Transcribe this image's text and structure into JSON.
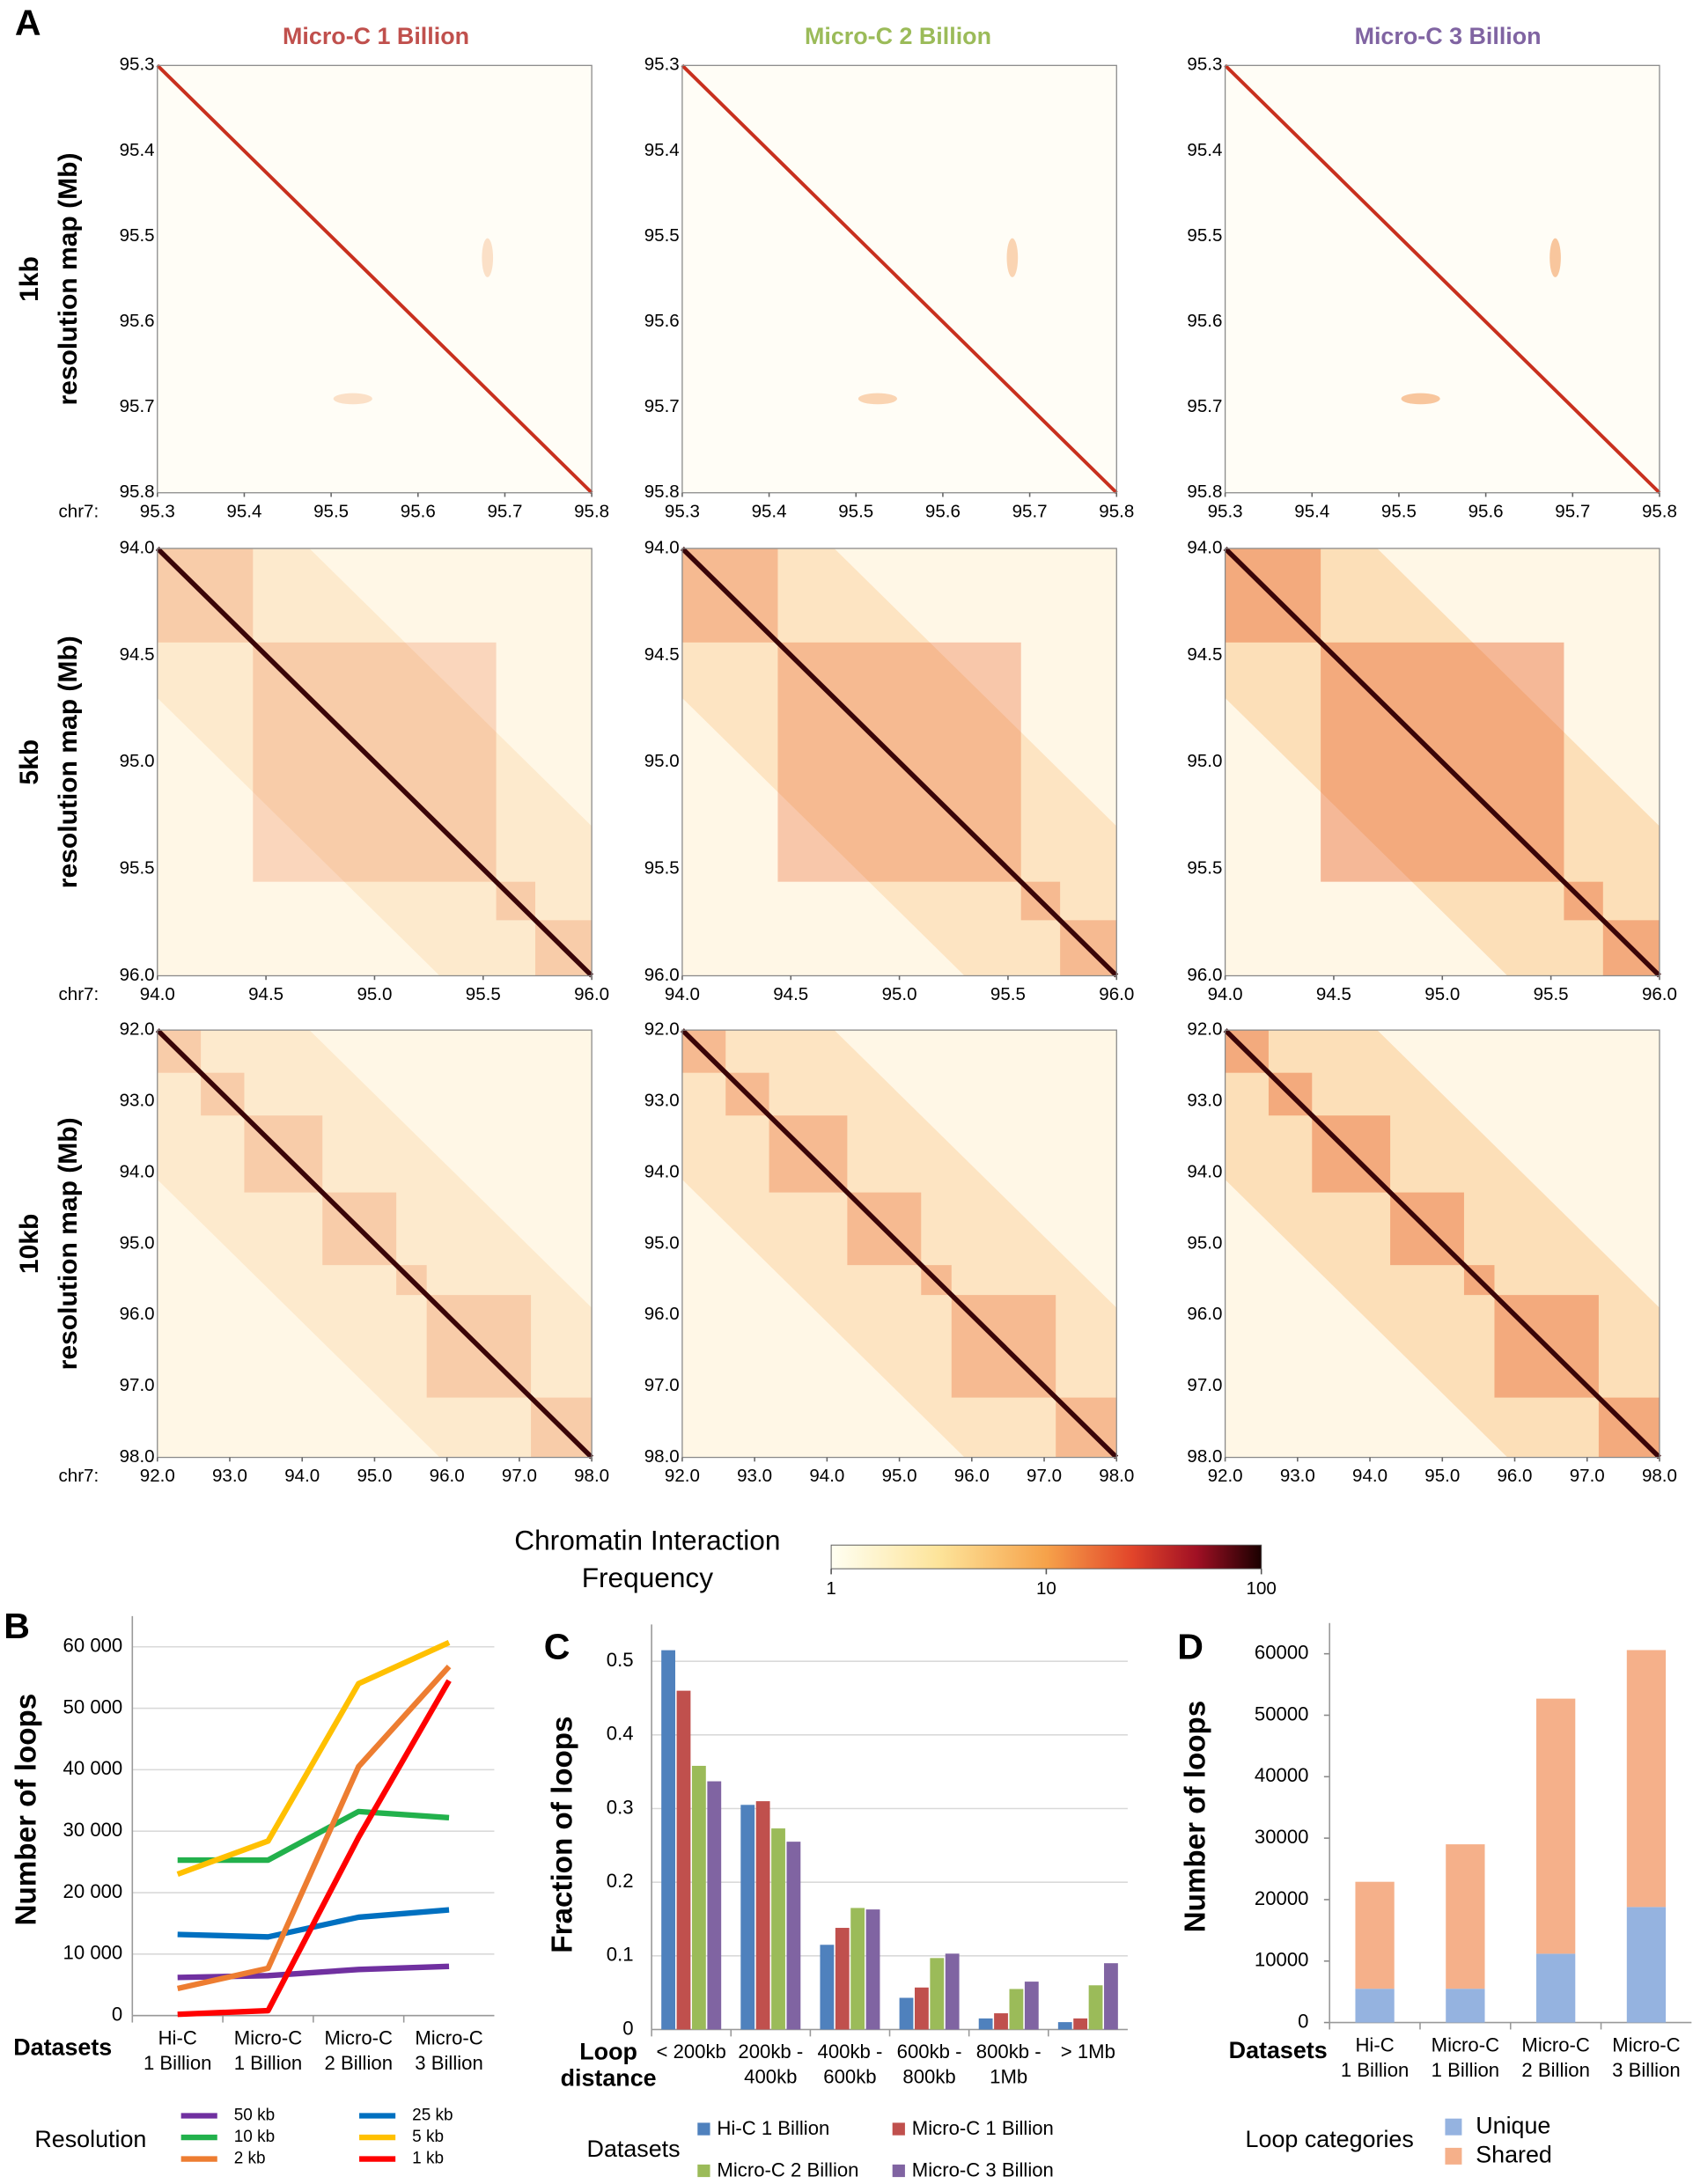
{
  "panel_labels": [
    "A",
    "B",
    "C",
    "D"
  ],
  "heatmaps": {
    "columns": [
      {
        "title": "Micro-C 1 Billion",
        "color": "#c0504d"
      },
      {
        "title": "Micro-C 2 Billion",
        "color": "#9bbb59"
      },
      {
        "title": "Micro-C 3 Billion",
        "color": "#8064a2"
      }
    ],
    "chr_label": "chr7:",
    "rows": [
      {
        "label": [
          "1kb",
          "resolution map (Mb)"
        ],
        "lim": [
          95.3,
          95.8
        ],
        "ticks": [
          95.3,
          95.4,
          95.5,
          95.6,
          95.7,
          95.8
        ]
      },
      {
        "label": [
          "5kb",
          "resolution map (Mb)"
        ],
        "lim": [
          94,
          96
        ],
        "ticks": [
          {
            "value": 94,
            "label": "94.0"
          },
          94.5,
          {
            "value": 95,
            "label": "95.0"
          },
          95.5,
          {
            "value": 96,
            "label": "96.0"
          }
        ]
      },
      {
        "label": [
          "10kb",
          "resolution map (Mb)"
        ],
        "lim": [
          92,
          98
        ],
        "ticks": [
          {
            "value": 92,
            "label": "92.0"
          },
          {
            "value": 93,
            "label": "93.0"
          },
          {
            "value": 94,
            "label": "94.0"
          },
          {
            "value": 95,
            "label": "95.0"
          },
          {
            "value": 96,
            "label": "96.0"
          },
          {
            "value": 97,
            "label": "97.0"
          },
          {
            "value": 98,
            "label": "98.0"
          }
        ]
      }
    ]
  },
  "colorbar": {
    "title": [
      "Chromatin Interaction",
      "Frequency"
    ],
    "lim": [
      1,
      100
    ],
    "log": true,
    "ticks": [
      1,
      10,
      100
    ]
  },
  "chart_data": [
    {
      "type": "line",
      "ylabel": "Number of loops",
      "xlabel": "Datasets",
      "categories": [
        [
          "Hi-C",
          "1 Billion"
        ],
        [
          "Micro-C",
          "1 Billion"
        ],
        [
          "Micro-C",
          "2 Billion"
        ],
        [
          "Micro-C",
          "3 Billion"
        ]
      ],
      "ylim": [
        0,
        65000
      ],
      "yticks": [
        0,
        {
          "value": 10000,
          "label": "10 000"
        },
        {
          "value": 20000,
          "label": "20 000"
        },
        {
          "value": 30000,
          "label": "30 000"
        },
        {
          "value": 40000,
          "label": "40 000"
        },
        {
          "value": 50000,
          "label": "50 000"
        },
        {
          "value": 60000,
          "label": "60 000"
        }
      ],
      "grid": true,
      "legend_title": "Resolution",
      "series": [
        {
          "name": "50 kb",
          "color": "#7030a0",
          "values": [
            6200,
            6500,
            7500,
            8000
          ]
        },
        {
          "name": "25 kb",
          "color": "#0070c0",
          "values": [
            13200,
            12800,
            16000,
            17200
          ]
        },
        {
          "name": "10 kb",
          "color": "#22b14c",
          "values": [
            25300,
            25300,
            33200,
            32200
          ]
        },
        {
          "name": "5 kb",
          "color": "#ffc000",
          "values": [
            23000,
            28400,
            54000,
            60700
          ]
        },
        {
          "name": "2 kb",
          "color": "#ed7d31",
          "values": [
            4400,
            7700,
            40500,
            56800
          ]
        },
        {
          "name": "1 kb",
          "color": "#ff0000",
          "values": [
            200,
            800,
            29000,
            54500
          ]
        }
      ]
    },
    {
      "type": "bar",
      "ylabel": "Fraction of loops",
      "xlabel": [
        "Loop",
        "distance"
      ],
      "categories": [
        [
          "< 200kb"
        ],
        [
          "200kb -",
          "400kb"
        ],
        [
          "400kb -",
          "600kb"
        ],
        [
          "600kb -",
          "800kb"
        ],
        [
          "800kb -",
          "1Mb"
        ],
        [
          "> 1Mb"
        ]
      ],
      "ylim": [
        0,
        0.55
      ],
      "yticks": [
        0,
        0.1,
        0.2,
        0.3,
        0.4,
        0.5
      ],
      "grid": true,
      "legend_title": "Datasets",
      "series": [
        {
          "name": "Hi-C 1 Billion",
          "color": "#4f81bd",
          "values": [
            0.515,
            0.305,
            0.115,
            0.043,
            0.015,
            0.01
          ]
        },
        {
          "name": "Micro-C 1 Billion",
          "color": "#c0504d",
          "values": [
            0.46,
            0.31,
            0.138,
            0.057,
            0.022,
            0.015
          ]
        },
        {
          "name": "Micro-C 2 Billion",
          "color": "#9bbb59",
          "values": [
            0.358,
            0.273,
            0.165,
            0.097,
            0.055,
            0.06
          ]
        },
        {
          "name": "Micro-C 3 Billion",
          "color": "#8064a2",
          "values": [
            0.337,
            0.255,
            0.163,
            0.103,
            0.065,
            0.09
          ]
        }
      ]
    },
    {
      "type": "bar",
      "stacked": true,
      "ylabel": "Number of loops",
      "xlabel": "Datasets",
      "categories": [
        [
          "Hi-C",
          "1 Billion"
        ],
        [
          "Micro-C",
          "1 Billion"
        ],
        [
          "Micro-C",
          "2 Billion"
        ],
        [
          "Micro-C",
          "3 Billion"
        ]
      ],
      "ylim": [
        0,
        65000
      ],
      "yticks": [
        0,
        10000,
        20000,
        30000,
        40000,
        50000,
        60000
      ],
      "grid": false,
      "legend_title": "Loop categories",
      "series": [
        {
          "name": "Unique",
          "color": "#95b3e0",
          "values": [
            5500,
            5500,
            11200,
            18800
          ]
        },
        {
          "name": "Shared",
          "color": "#f5b08a",
          "values": [
            17400,
            23500,
            41500,
            41800
          ]
        }
      ]
    }
  ]
}
